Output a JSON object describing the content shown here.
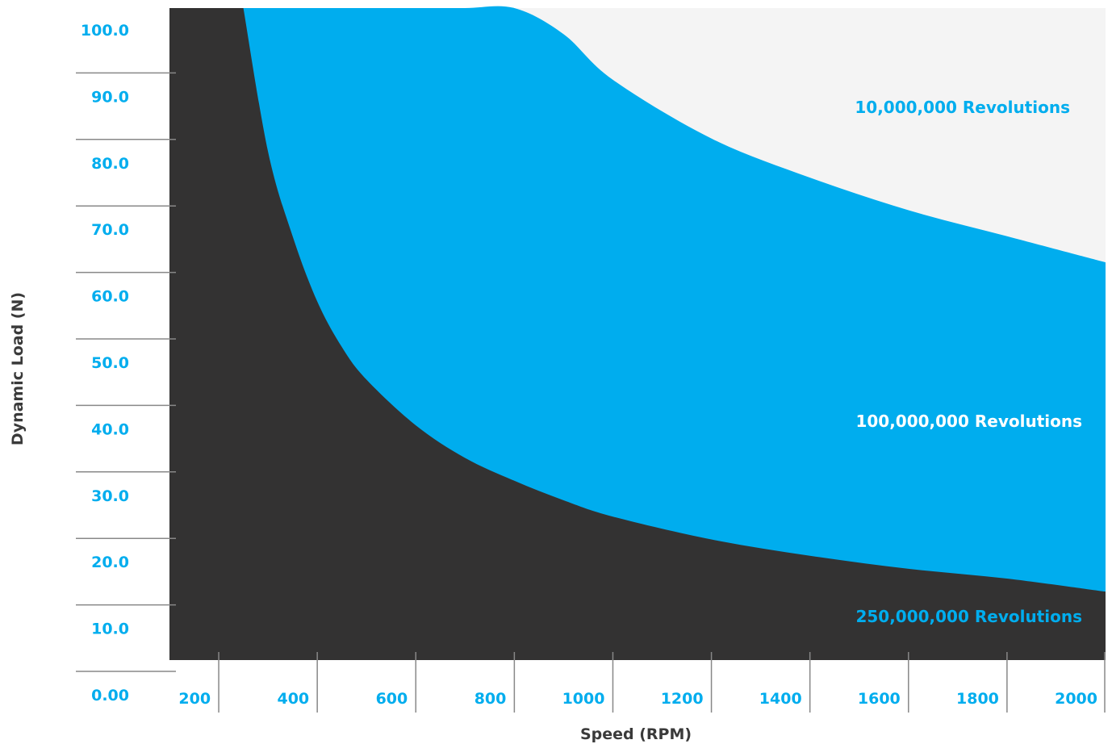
{
  "chart_data": {
    "type": "area",
    "xlabel": "Speed (RPM)",
    "ylabel": "Dynamic Load (N)",
    "xlim": [
      100,
      2000
    ],
    "ylim": [
      0,
      100
    ],
    "x_ticks": [
      {
        "value": 200,
        "label": "200"
      },
      {
        "value": 400,
        "label": "400"
      },
      {
        "value": 600,
        "label": "600"
      },
      {
        "value": 800,
        "label": "800"
      },
      {
        "value": 1000,
        "label": "1000"
      },
      {
        "value": 1200,
        "label": "1200"
      },
      {
        "value": 1400,
        "label": "1400"
      },
      {
        "value": 1600,
        "label": "1600"
      },
      {
        "value": 1800,
        "label": "1800"
      },
      {
        "value": 2000,
        "label": "2000"
      }
    ],
    "y_ticks": [
      {
        "value": 0,
        "label": "0.00"
      },
      {
        "value": 10,
        "label": "10.0"
      },
      {
        "value": 20,
        "label": "20.0"
      },
      {
        "value": 30,
        "label": "30.0"
      },
      {
        "value": 40,
        "label": "40.0"
      },
      {
        "value": 50,
        "label": "50.0"
      },
      {
        "value": 60,
        "label": "60.0"
      },
      {
        "value": 70,
        "label": "70.0"
      },
      {
        "value": 80,
        "label": "80.0"
      },
      {
        "value": 90,
        "label": "90.0"
      },
      {
        "value": 100,
        "label": "100.0"
      }
    ],
    "series": [
      {
        "name": "250,000,000 Revolutions",
        "color": "#333232",
        "x": [
          250,
          300,
          350,
          400,
          450,
          500,
          600,
          700,
          800,
          900,
          1000,
          1200,
          1400,
          1600,
          1800,
          2000
        ],
        "y": [
          100,
          78,
          65,
          55,
          48,
          43,
          36,
          31,
          27.5,
          24.5,
          22,
          18.5,
          16,
          14,
          12.5,
          10.5
        ]
      },
      {
        "name": "100,000,000 Revolutions",
        "color": "#00adee",
        "x": [
          250,
          300,
          350,
          400,
          450,
          500,
          600,
          700,
          800,
          900,
          1000,
          1200,
          1400,
          1600,
          1800,
          2000
        ],
        "y": [
          100,
          78,
          65,
          55,
          48,
          43,
          36,
          31,
          27.5,
          24.5,
          22,
          18.5,
          16,
          14,
          12.5,
          10.5
        ],
        "y_upper": [
          100,
          100,
          100,
          100,
          100,
          100,
          100,
          100,
          100,
          96,
          89,
          80,
          74,
          69,
          65,
          61
        ]
      },
      {
        "name": "10,000,000 Revolutions",
        "color": "#f4f4f4"
      }
    ],
    "region_label_colors": {
      "10,000,000 Revolutions": "#00adee",
      "100,000,000 Revolutions": "#ffffff",
      "250,000,000 Revolutions": "#00adee"
    },
    "tick_label_color": "#00adee",
    "grid": false
  }
}
